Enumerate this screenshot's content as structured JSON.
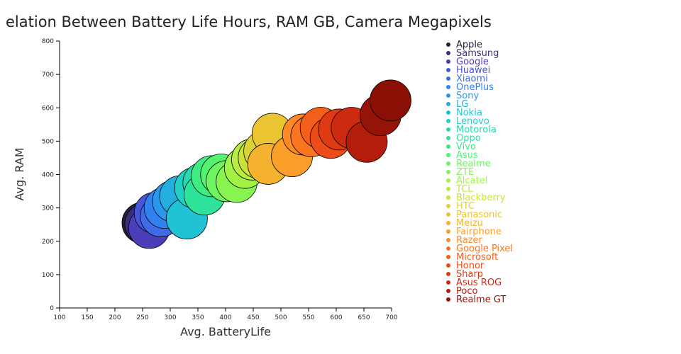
{
  "chart_data": {
    "type": "scatter",
    "title": "elation Between Battery Life Hours, RAM GB, Camera Megapixels",
    "xlabel": "Avg. BatteryLife",
    "ylabel": "Avg. RAM",
    "xlim": [
      100,
      700
    ],
    "ylim": [
      0,
      800
    ],
    "xticks": [
      100,
      150,
      200,
      250,
      300,
      350,
      400,
      450,
      500,
      550,
      600,
      650,
      700
    ],
    "yticks": [
      0,
      100,
      200,
      300,
      400,
      500,
      600,
      700,
      800
    ],
    "legend": "right",
    "series": [
      {
        "name": "Apple",
        "color": "#22223b",
        "x": 250,
        "y": 255
      },
      {
        "name": "Samsung",
        "color": "#3b2d7a",
        "x": 255,
        "y": 252
      },
      {
        "name": "Google",
        "color": "#4a3fb8",
        "x": 262,
        "y": 240
      },
      {
        "name": "Huawei",
        "color": "#4756d8",
        "x": 272,
        "y": 285
      },
      {
        "name": "Xiaomi",
        "color": "#3f6be8",
        "x": 283,
        "y": 275
      },
      {
        "name": "OnePlus",
        "color": "#3182f0",
        "x": 290,
        "y": 300
      },
      {
        "name": "Sony",
        "color": "#2a98ee",
        "x": 305,
        "y": 320
      },
      {
        "name": "LG",
        "color": "#24aee0",
        "x": 318,
        "y": 335
      },
      {
        "name": "Nokia",
        "color": "#22c2d5",
        "x": 330,
        "y": 268
      },
      {
        "name": "Lenovo",
        "color": "#21d0c4",
        "x": 345,
        "y": 360
      },
      {
        "name": "Motorola",
        "color": "#25dbae",
        "x": 360,
        "y": 375
      },
      {
        "name": "Oppo",
        "color": "#2fe49a",
        "x": 362,
        "y": 340
      },
      {
        "name": "Vivo",
        "color": "#3eec84",
        "x": 375,
        "y": 395
      },
      {
        "name": "Asus",
        "color": "#55f26f",
        "x": 392,
        "y": 400
      },
      {
        "name": "Realme",
        "color": "#6df45e",
        "x": 402,
        "y": 380
      },
      {
        "name": "ZTE",
        "color": "#88f450",
        "x": 420,
        "y": 378
      },
      {
        "name": "Alcatel",
        "color": "#a2f245",
        "x": 435,
        "y": 420
      },
      {
        "name": "TCL",
        "color": "#b8ec3e",
        "x": 448,
        "y": 445
      },
      {
        "name": "Blackberry",
        "color": "#cbe23a",
        "x": 460,
        "y": 450
      },
      {
        "name": "HTC",
        "color": "#dcd437",
        "x": 470,
        "y": 470
      },
      {
        "name": "Panasonic",
        "color": "#ebc432",
        "x": 485,
        "y": 522
      },
      {
        "name": "Meizu",
        "color": "#f5b22e",
        "x": 477,
        "y": 432
      },
      {
        "name": "Fairphone",
        "color": "#fb9f2a",
        "x": 520,
        "y": 455
      },
      {
        "name": "Razer",
        "color": "#fd8a25",
        "x": 540,
        "y": 520
      },
      {
        "name": "Google Pixel",
        "color": "#fb7420",
        "x": 555,
        "y": 515
      },
      {
        "name": "Microsoft",
        "color": "#f55f1c",
        "x": 572,
        "y": 540
      },
      {
        "name": "Honor",
        "color": "#ec4c18",
        "x": 590,
        "y": 510
      },
      {
        "name": "Sharp",
        "color": "#de3a14",
        "x": 605,
        "y": 535
      },
      {
        "name": "Asus ROG",
        "color": "#cc2b10",
        "x": 628,
        "y": 540
      },
      {
        "name": "Poco",
        "color": "#b31d0c",
        "x": 655,
        "y": 498
      },
      {
        "name": "Realme GT",
        "color": "#961308",
        "x": 680,
        "y": 578
      },
      {
        "name": "",
        "color": "#8a0f05",
        "x": 698,
        "y": 622
      }
    ]
  }
}
